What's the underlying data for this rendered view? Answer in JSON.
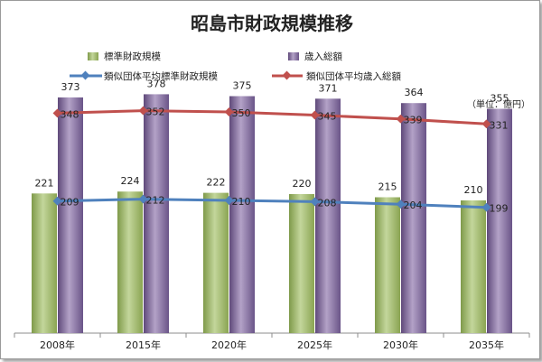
{
  "chart_data": {
    "type": "bar",
    "title": "昭島市財政規模推移",
    "unit_label": "（単位：億円）",
    "categories": [
      "2008年",
      "2015年",
      "2020年",
      "2025年",
      "2030年",
      "2035年"
    ],
    "ylim": [
      0,
      400
    ],
    "grid": false,
    "legend_position": "top",
    "series": [
      {
        "name": "標準財政規模",
        "kind": "bar",
        "color": "#9cba5f",
        "values": [
          221,
          224,
          222,
          220,
          215,
          210
        ]
      },
      {
        "name": "歳入総額",
        "kind": "bar",
        "color": "#8064a2",
        "values": [
          373,
          378,
          375,
          371,
          364,
          355
        ]
      },
      {
        "name": "類似団体平均標準財政規模",
        "kind": "line",
        "color": "#4f81bd",
        "values": [
          209,
          212,
          210,
          208,
          204,
          199
        ]
      },
      {
        "name": "類似団体平均歳入総額",
        "kind": "line",
        "color": "#c0504d",
        "values": [
          348,
          352,
          350,
          345,
          339,
          331
        ]
      }
    ]
  }
}
